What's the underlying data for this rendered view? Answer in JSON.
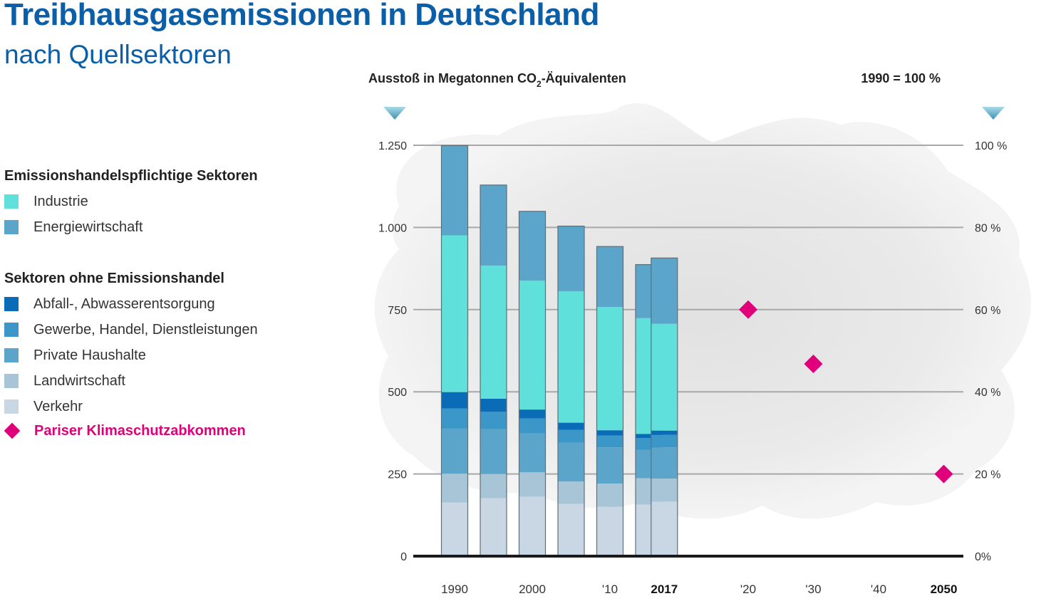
{
  "header": {
    "title": "Treibhausgasemissionen in Deutschland",
    "subtitle": "nach Quellsektoren"
  },
  "legend": {
    "group1_title": "Emissionshandelspflichtige Sektoren",
    "group2_title": "Sektoren ohne Emissionshandel",
    "items": [
      {
        "label": "Industrie",
        "color": "#5fe0da",
        "group": 1
      },
      {
        "label": "Energiewirtschaft",
        "color": "#5aa5c9",
        "group": 1
      },
      {
        "label": "Abfall-, Abwasserentsorgung",
        "color": "#0a6cb6",
        "group": 2
      },
      {
        "label": "Gewerbe, Handel, Dienstleistungen",
        "color": "#3b97c8",
        "group": 2
      },
      {
        "label": "Private Haushalte",
        "color": "#5aa5c9",
        "group": 2
      },
      {
        "label": "Landwirtschaft",
        "color": "#a8c5d8",
        "group": 2
      },
      {
        "label": "Verkehr",
        "color": "#c8d7e3",
        "group": 2
      }
    ],
    "target_label": "Pariser Klimaschutzabkommen",
    "target_color": "#e0007a"
  },
  "chart_data": {
    "type": "bar",
    "stacked": true,
    "left_axis_title": "Ausstoß in Megatonnen CO",
    "left_axis_title_sub": "2",
    "left_axis_title_end": "-Äquivalenten",
    "right_axis_title": "1990 = 100 %",
    "ylim": [
      0,
      1250
    ],
    "y_ticks": [
      0,
      250,
      500,
      750,
      1000,
      1250
    ],
    "y_tick_labels": [
      "0",
      "250",
      "500",
      "750",
      "1.000",
      "1.250"
    ],
    "right_tick_labels": [
      "0%",
      "20 %",
      "40 %",
      "60 %",
      "80 %",
      "100 %"
    ],
    "x_tick_labels": [
      {
        "label": "1990",
        "year": 1990,
        "bold": false
      },
      {
        "label": "2000",
        "year": 2000,
        "bold": false
      },
      {
        "label": "'10",
        "year": 2010,
        "bold": false
      },
      {
        "label": "2017",
        "year": 2017,
        "bold": true
      },
      {
        "label": "'20",
        "year": 2020,
        "bold": false
      },
      {
        "label": "'30",
        "year": 2030,
        "bold": false
      },
      {
        "label": "'40",
        "year": 2040,
        "bold": false
      },
      {
        "label": "2050",
        "year": 2050,
        "bold": true
      }
    ],
    "years": [
      1990,
      1995,
      2000,
      2005,
      2010,
      2015,
      2017
    ],
    "series": [
      {
        "name": "Verkehr",
        "color": "#c8d7e3",
        "values": [
          163,
          176,
          181,
          159,
          150,
          157,
          166
        ]
      },
      {
        "name": "Landwirtschaft",
        "color": "#a8c5d8",
        "values": [
          88,
          74,
          74,
          68,
          71,
          80,
          70
        ]
      },
      {
        "name": "Private Haushalte",
        "color": "#5aa5c9",
        "values": [
          137,
          136,
          118,
          118,
          110,
          86,
          95
        ]
      },
      {
        "name": "Gewerbe, Handel, Dienstleistungen",
        "color": "#3b97c8",
        "values": [
          61,
          53,
          46,
          39,
          36,
          36,
          38
        ]
      },
      {
        "name": "Abfall-, Abwasserentsorgung",
        "color": "#0a6cb6",
        "values": [
          50,
          40,
          27,
          22,
          16,
          13,
          13
        ]
      },
      {
        "name": "Industrie",
        "color": "#5fe0da",
        "values": [
          477,
          405,
          392,
          400,
          375,
          352,
          325
        ]
      },
      {
        "name": "Energiewirtschaft",
        "color": "#5aa5c9",
        "values": [
          273,
          245,
          211,
          198,
          184,
          163,
          200
        ]
      }
    ],
    "totals": [
      1249,
      1129,
      1049,
      1004,
      942,
      887,
      907
    ],
    "targets": [
      {
        "year": 2020,
        "value": 750
      },
      {
        "year": 2030,
        "value": 585
      },
      {
        "year": 2050,
        "value": 250
      }
    ]
  }
}
